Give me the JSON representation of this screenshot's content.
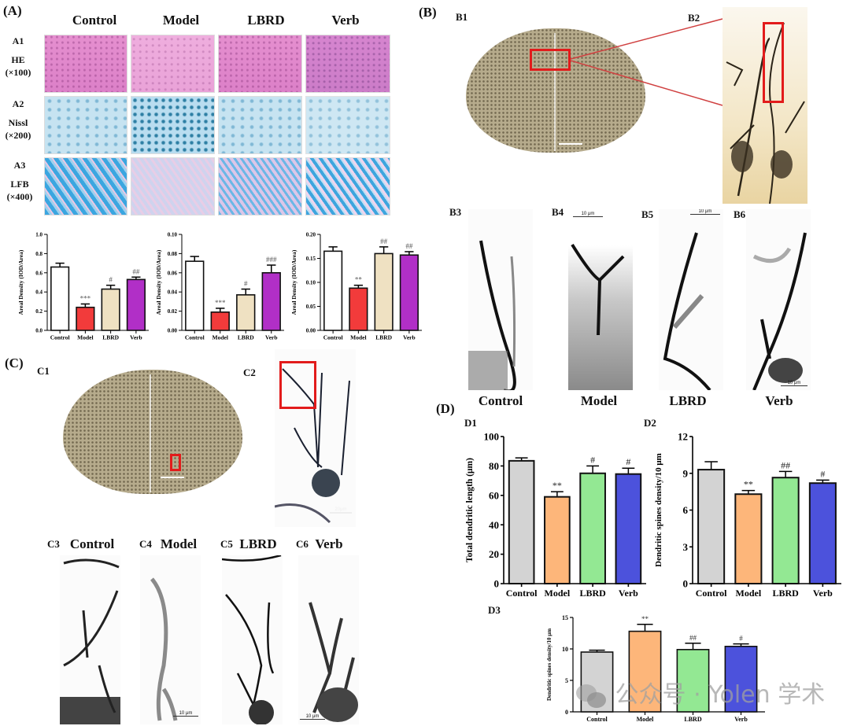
{
  "panel_a": {
    "letter": "(A)",
    "columns": [
      "Control",
      "Model",
      "LBRD",
      "Verb"
    ],
    "rows": [
      {
        "id": "A1",
        "stain": "HE",
        "mag": "(×100)"
      },
      {
        "id": "A2",
        "stain": "Nissl",
        "mag": "(×200)"
      },
      {
        "id": "A3",
        "stain": "LFB",
        "mag": "(×400)"
      }
    ]
  },
  "panel_b": {
    "letter": "(B)",
    "labels": {
      "b1": "B1",
      "b2": "B2",
      "b3": "B3",
      "b4": "B4",
      "b5": "B5",
      "b6": "B6"
    },
    "groups": [
      "Control",
      "Model",
      "LBRD",
      "Verb"
    ],
    "scale_bars": {
      "b4": "10 μm",
      "b5": "10 μm",
      "b6": "10 μm"
    }
  },
  "panel_c": {
    "letter": "(C)",
    "labels": {
      "c1": "C1",
      "c2": "C2",
      "c3": "C3",
      "c4": "C4",
      "c5": "C5",
      "c6": "C6"
    },
    "groups": [
      "Control",
      "Model",
      "LBRD",
      "Verb"
    ],
    "scale_bars": {
      "c2": "20μm",
      "c4": "10 μm",
      "c6": "10 μm"
    }
  },
  "panel_d": {
    "letter": "(D)",
    "labels": {
      "d1": "D1",
      "d2": "D2",
      "d3": "D3"
    }
  },
  "colors": {
    "control_white": "#ffffff",
    "model_red": "#f23b3b",
    "lbrd_beige": "#efe1c2",
    "verb_purple": "#b12fc7",
    "d_control": "#d3d3d3",
    "d_model": "#fdb67a",
    "d_lbrd": "#93e893",
    "d_verb": "#4c52dc",
    "red_box": "#e21b1b"
  },
  "watermark": "公众号 · Yolen 学术",
  "chart_data": [
    {
      "id": "A-HE",
      "type": "bar",
      "categories": [
        "Control",
        "Model",
        "LBRD",
        "Verb"
      ],
      "values": [
        0.66,
        0.24,
        0.43,
        0.53
      ],
      "errors": [
        0.04,
        0.035,
        0.04,
        0.025
      ],
      "annotations": [
        "",
        "***",
        "#",
        "##"
      ],
      "ylabel": "Areal Density (IOD/Area)",
      "ylim": [
        0,
        1.0
      ],
      "yticks": [
        "0.0",
        "0.2",
        "0.4",
        "0.6",
        "0.8",
        "1.0"
      ],
      "ytick_values": [
        0,
        0.2,
        0.4,
        0.6,
        0.8,
        1.0
      ]
    },
    {
      "id": "A-Nissl",
      "type": "bar",
      "categories": [
        "Control",
        "Model",
        "LBRD",
        "Verb"
      ],
      "values": [
        0.072,
        0.019,
        0.037,
        0.06
      ],
      "errors": [
        0.005,
        0.004,
        0.006,
        0.008
      ],
      "annotations": [
        "",
        "***",
        "#",
        "###"
      ],
      "ylabel": "Areal Density (IOD/Area)",
      "ylim": [
        0,
        0.1
      ],
      "yticks": [
        "0.00",
        "0.02",
        "0.04",
        "0.06",
        "0.08",
        "0.10"
      ],
      "ytick_values": [
        0,
        0.02,
        0.04,
        0.06,
        0.08,
        0.1
      ]
    },
    {
      "id": "A-LFB",
      "type": "bar",
      "categories": [
        "Control",
        "Model",
        "LBRD",
        "Verb"
      ],
      "values": [
        0.165,
        0.088,
        0.16,
        0.157
      ],
      "errors": [
        0.009,
        0.006,
        0.014,
        0.007
      ],
      "annotations": [
        "",
        "**",
        "##",
        "##"
      ],
      "ylabel": "Areal Density (IOD/Area)",
      "ylim": [
        0,
        0.2
      ],
      "yticks": [
        "0.00",
        "0.05",
        "0.10",
        "0.15",
        "0.20"
      ],
      "ytick_values": [
        0,
        0.05,
        0.1,
        0.15,
        0.2
      ]
    },
    {
      "id": "D1",
      "type": "bar",
      "categories": [
        "Control",
        "Model",
        "LBRD",
        "Verb"
      ],
      "values": [
        83.5,
        59,
        75,
        74.5
      ],
      "errors": [
        2,
        3.5,
        5,
        4
      ],
      "annotations": [
        "",
        "**",
        "#",
        "#"
      ],
      "ylabel": "Total dendritic length (μm)",
      "ylim": [
        0,
        100
      ],
      "yticks": [
        "0",
        "20",
        "40",
        "60",
        "80",
        "100"
      ],
      "ytick_values": [
        0,
        20,
        40,
        60,
        80,
        100
      ]
    },
    {
      "id": "D2",
      "type": "bar",
      "categories": [
        "Control",
        "Model",
        "LBRD",
        "Verb"
      ],
      "values": [
        9.3,
        7.3,
        8.65,
        8.2
      ],
      "errors": [
        0.65,
        0.3,
        0.5,
        0.25
      ],
      "annotations": [
        "",
        "**",
        "##",
        "#"
      ],
      "ylabel": "Dendritic spines density/10 μm",
      "ylim": [
        0,
        12
      ],
      "yticks": [
        "0",
        "3",
        "6",
        "9",
        "12"
      ],
      "ytick_values": [
        0,
        3,
        6,
        9,
        12
      ]
    },
    {
      "id": "D3",
      "type": "bar",
      "categories": [
        "Control",
        "Model",
        "LBRD",
        "Verb"
      ],
      "values": [
        9.5,
        12.8,
        9.9,
        10.4
      ],
      "errors": [
        0.3,
        1.1,
        1.0,
        0.4
      ],
      "annotations": [
        "",
        "**",
        "##",
        "#"
      ],
      "ylabel": "Dendritic spines density/10 μm",
      "ylim": [
        0,
        15
      ],
      "yticks": [
        "0",
        "5",
        "10",
        "15"
      ],
      "ytick_values": [
        0,
        5,
        10,
        15
      ]
    }
  ]
}
